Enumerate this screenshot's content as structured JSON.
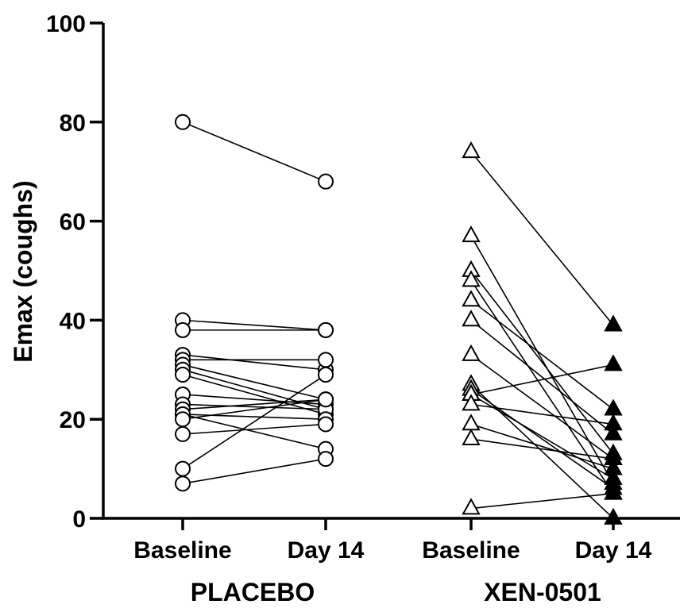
{
  "chart_data": {
    "type": "scatter",
    "subtype": "paired-before-after",
    "title": "",
    "ylabel": "Emax (coughs)",
    "ylim": [
      0,
      100
    ],
    "yticks": [
      0,
      20,
      40,
      60,
      80,
      100
    ],
    "grid": false,
    "legend": "none",
    "categories": [
      "Baseline",
      "Day 14",
      "Baseline",
      "Day 14"
    ],
    "groups": [
      {
        "name": "PLACEBO",
        "categories": [
          "Baseline",
          "Day 14"
        ],
        "marker_baseline": "open-circle",
        "marker_day14": "open-circle",
        "pairs": [
          [
            80,
            68
          ],
          [
            40,
            38
          ],
          [
            38,
            38
          ],
          [
            33,
            30
          ],
          [
            32,
            32
          ],
          [
            31,
            24
          ],
          [
            30,
            22
          ],
          [
            29,
            21
          ],
          [
            25,
            23
          ],
          [
            23,
            22
          ],
          [
            22,
            24
          ],
          [
            21,
            20
          ],
          [
            21,
            14
          ],
          [
            20,
            24
          ],
          [
            17,
            19
          ],
          [
            10,
            29
          ],
          [
            7,
            12
          ]
        ]
      },
      {
        "name": "XEN-0501",
        "categories": [
          "Baseline",
          "Day 14"
        ],
        "marker_baseline": "open-triangle",
        "marker_day14": "filled-triangle",
        "pairs": [
          [
            74,
            39
          ],
          [
            57,
            7
          ],
          [
            50,
            13
          ],
          [
            48,
            5
          ],
          [
            44,
            22
          ],
          [
            40,
            17
          ],
          [
            33,
            12
          ],
          [
            27,
            0
          ],
          [
            26,
            6
          ],
          [
            25,
            31
          ],
          [
            25,
            8
          ],
          [
            23,
            19
          ],
          [
            19,
            10
          ],
          [
            16,
            12
          ],
          [
            2,
            5
          ]
        ]
      }
    ]
  },
  "colors": {
    "ink": "#000000",
    "background": "#ffffff"
  }
}
